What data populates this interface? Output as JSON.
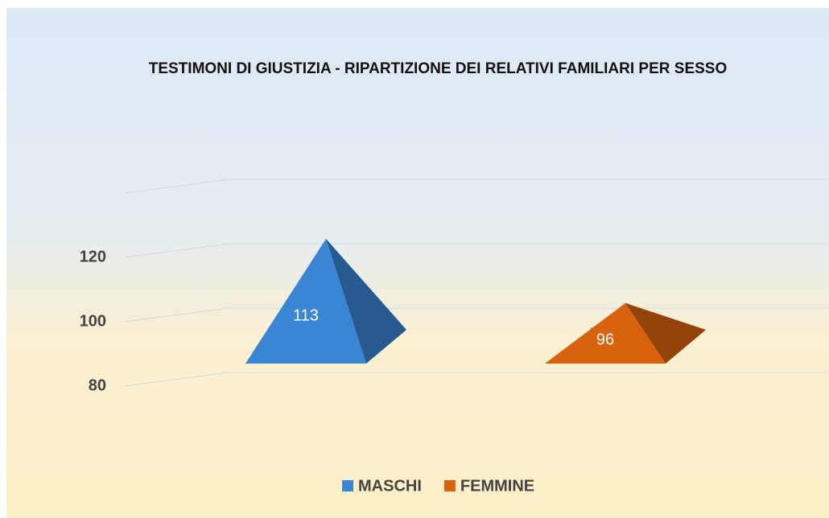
{
  "chart_data": {
    "type": "pyramid",
    "title": "TESTIMONI DI GIUSTIZIA - RIPARTIZIONE DEI RELATIVI FAMILIARI PER SESSO",
    "series": [
      {
        "name": "MASCHI",
        "color": "#3a86d4",
        "values": [
          113
        ]
      },
      {
        "name": "FEMMINE",
        "color": "#d9620f",
        "values": [
          96
        ]
      }
    ],
    "ylim": [
      80,
      140
    ],
    "yticks": [
      80,
      100,
      120
    ],
    "grid": true,
    "legend": "bottom"
  }
}
